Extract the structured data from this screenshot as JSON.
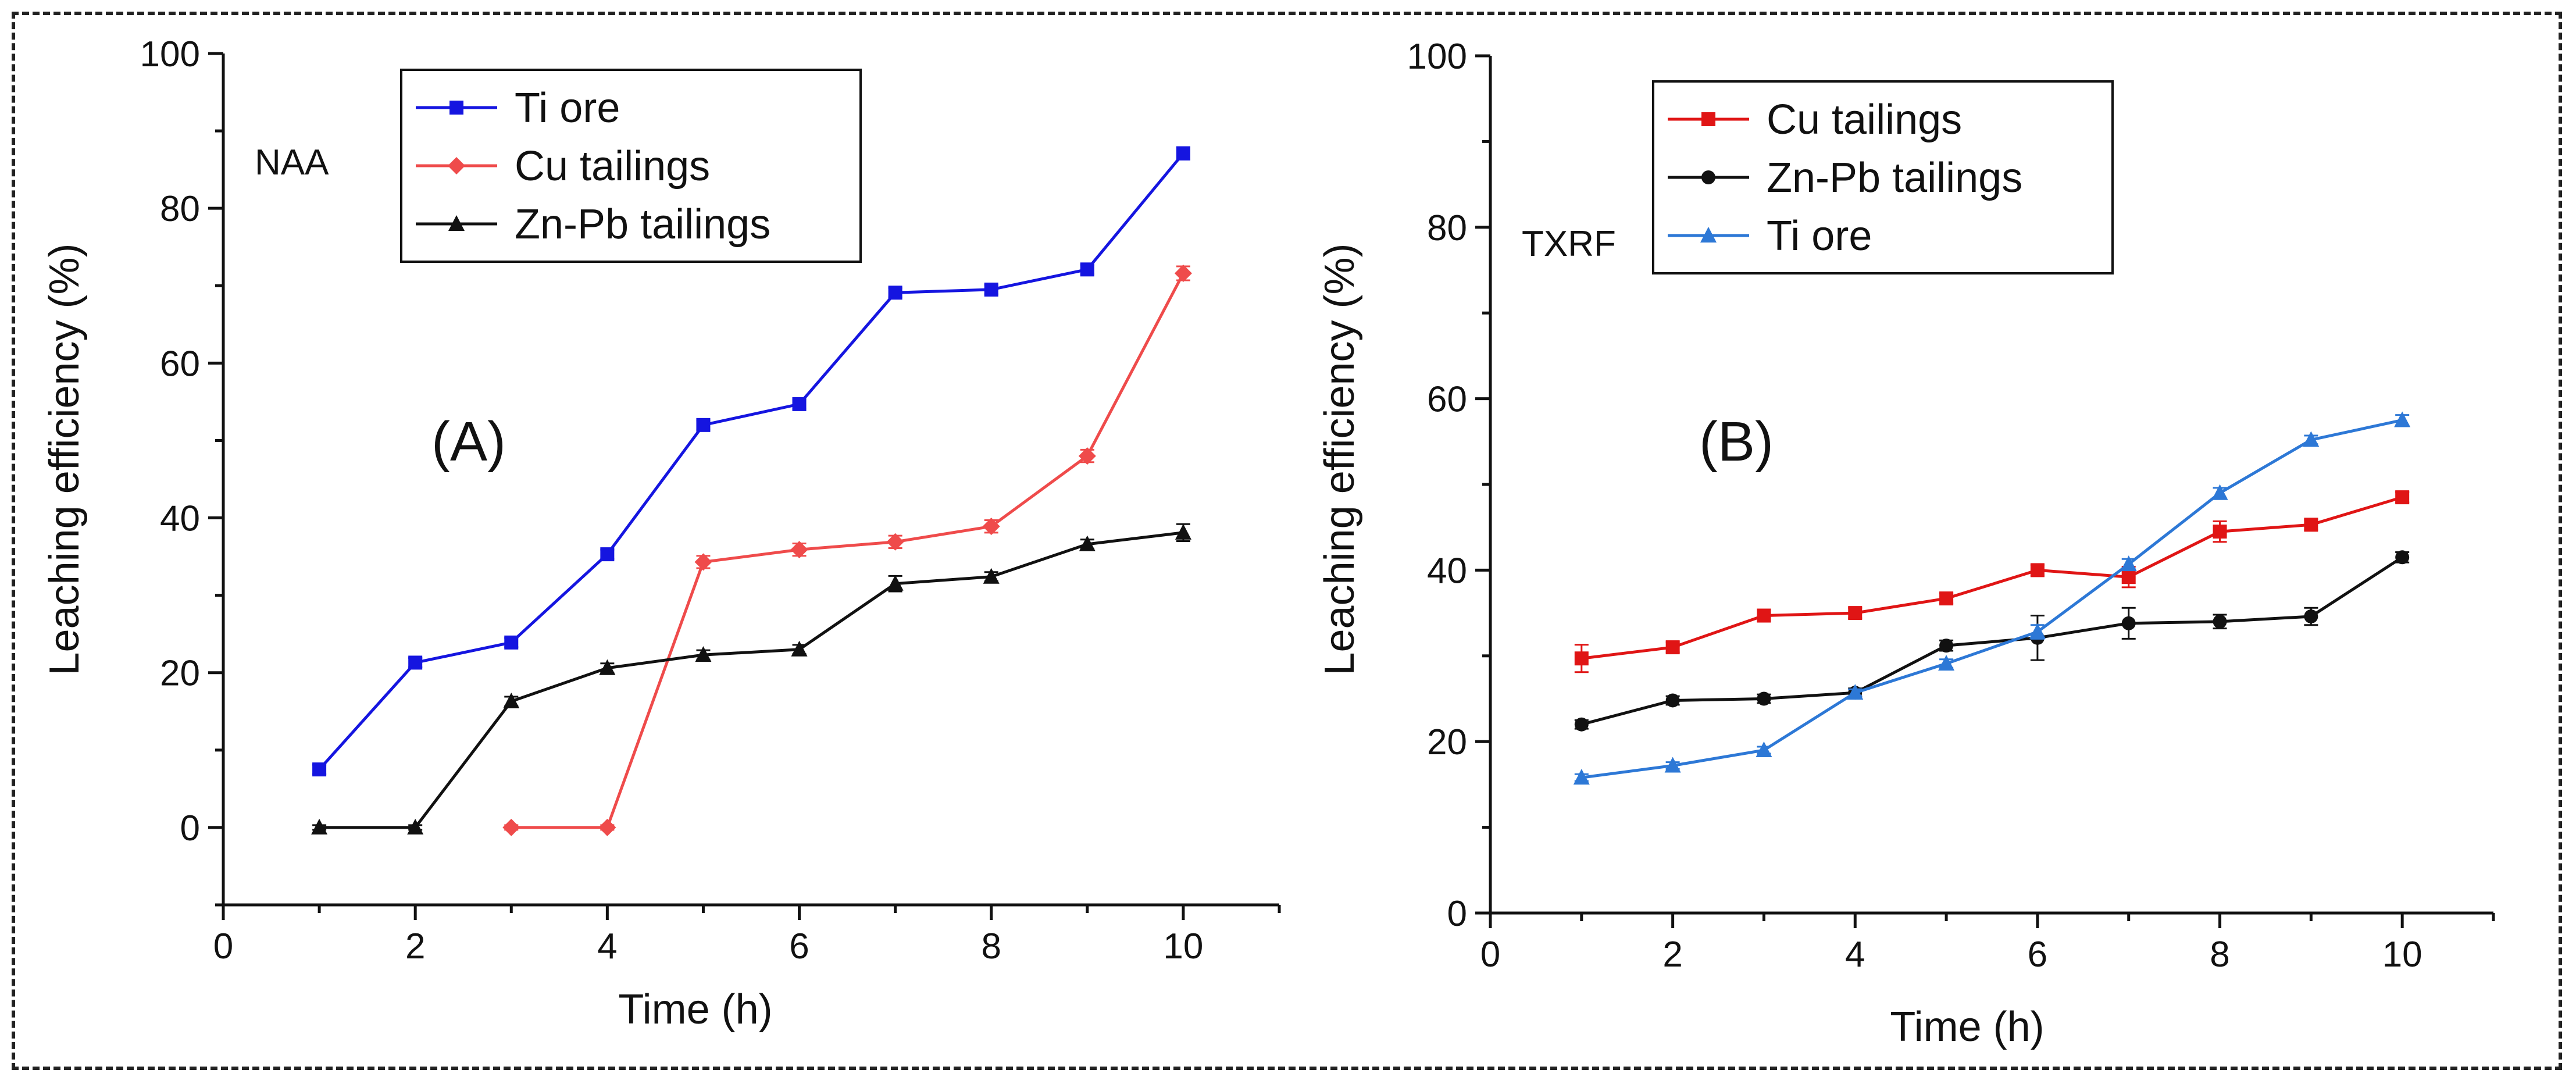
{
  "chart_data": [
    {
      "type": "line",
      "panel_label": "(A)",
      "method_label": "NAA",
      "xlabel": "Time (h)",
      "ylabel": "Leaching efficiency (%)",
      "xlim": [
        0,
        11
      ],
      "ylim": [
        -10,
        100
      ],
      "xticks": [
        0,
        2,
        4,
        6,
        8,
        10
      ],
      "yticks": [
        0,
        20,
        40,
        60,
        80,
        100
      ],
      "legend_position": "top-center",
      "x": [
        1,
        2,
        3,
        4,
        5,
        6,
        7,
        8,
        9,
        10
      ],
      "series": [
        {
          "name": "Ti ore",
          "color": "#1515e0",
          "marker": "square",
          "values": [
            7.5,
            21.3,
            23.9,
            35.3,
            52.0,
            54.7,
            69.1,
            69.5,
            72.1,
            87.1
          ],
          "errors": [
            0.6,
            0.6,
            0.6,
            0.6,
            0.6,
            0.6,
            0.6,
            0.6,
            0.6,
            0.8
          ]
        },
        {
          "name": "Cu tailings",
          "color": "#ef4b4b",
          "marker": "diamond",
          "values": [
            null,
            null,
            0,
            0,
            34.3,
            35.9,
            36.9,
            38.9,
            48.0,
            71.6
          ],
          "errors": [
            0,
            0,
            0.3,
            0.3,
            0.8,
            0.8,
            0.8,
            0.8,
            0.8,
            0.9
          ]
        },
        {
          "name": "Zn-Pb  tailings",
          "color": "#111111",
          "marker": "triangle",
          "values": [
            0,
            0,
            16.3,
            20.6,
            22.3,
            23.0,
            31.5,
            32.4,
            36.6,
            38.1
          ],
          "errors": [
            0.3,
            0.3,
            0.6,
            0.6,
            0.6,
            0.6,
            1.0,
            0.6,
            0.6,
            1.1
          ]
        }
      ]
    },
    {
      "type": "line",
      "panel_label": "(B)",
      "method_label": "TXRF",
      "xlabel": "Time (h)",
      "ylabel": "Leaching efficiency (%)",
      "xlim": [
        0,
        11
      ],
      "ylim": [
        0,
        100
      ],
      "xticks": [
        0,
        2,
        4,
        6,
        8,
        10
      ],
      "yticks": [
        0,
        20,
        40,
        60,
        80,
        100
      ],
      "legend_position": "top-left",
      "x": [
        1,
        2,
        3,
        4,
        5,
        6,
        7,
        8,
        9,
        10
      ],
      "series": [
        {
          "name": "Cu tailings",
          "color": "#e01515",
          "marker": "square",
          "values": [
            29.7,
            31.0,
            34.7,
            35.0,
            36.7,
            40.0,
            39.2,
            44.5,
            45.3,
            48.5
          ],
          "errors": [
            1.6,
            0.6,
            0.6,
            0.6,
            0.6,
            0.6,
            1.2,
            1.2,
            0.6,
            0.6
          ]
        },
        {
          "name": "Zn-Pb  tailings",
          "color": "#111111",
          "marker": "circle",
          "values": [
            22.0,
            24.8,
            25.0,
            25.7,
            31.2,
            32.1,
            33.8,
            34.0,
            34.6,
            41.5
          ],
          "errors": [
            0.5,
            0.5,
            0.5,
            0.5,
            0.6,
            2.6,
            1.8,
            0.8,
            1.0,
            0.6
          ]
        },
        {
          "name": "Ti ore",
          "color": "#2d78d6",
          "marker": "triangle",
          "values": [
            15.8,
            17.2,
            19.0,
            25.7,
            29.1,
            32.8,
            40.7,
            49.0,
            55.2,
            57.5
          ],
          "errors": [
            0.4,
            0.4,
            0.4,
            0.4,
            0.5,
            0.8,
            0.6,
            0.6,
            0.5,
            0.6
          ]
        }
      ]
    }
  ]
}
